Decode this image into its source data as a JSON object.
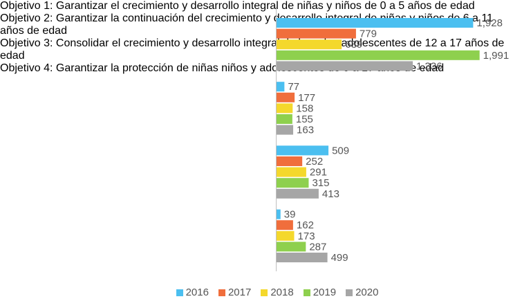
{
  "chart_data": {
    "type": "barh",
    "categories": [
      "Objetivo 1: Garantizar el crecimiento y desarrollo integral de niñas y niños de 0 a 5 años de edad",
      "Objetivo 2: Garantizar la continuación del crecimiento y desarrollo integral de niñas y niños de 6 a 11 años de edad",
      "Objetivo 3: Consolidar el crecimiento y desarrollo integral de las y los adolescentes de 12 a 17 años de edad",
      "Objetivo 4: Garantizar la protección de niñas niños y adolescentes de 0 a 17 años de edad"
    ],
    "series": [
      {
        "name": "2016",
        "color": "#4bbff0",
        "values": [
          1928,
          77,
          509,
          39
        ],
        "value_labels": [
          "1,928",
          "77",
          "509",
          "39"
        ]
      },
      {
        "name": "2017",
        "color": "#f06e3c",
        "values": [
          779,
          177,
          252,
          162
        ],
        "value_labels": [
          "779",
          "177",
          "252",
          "162"
        ]
      },
      {
        "name": "2018",
        "color": "#f4d82c",
        "values": [
          639,
          158,
          291,
          173
        ],
        "value_labels": [
          "639",
          "158",
          "291",
          "173"
        ]
      },
      {
        "name": "2019",
        "color": "#8ed04e",
        "values": [
          1991,
          155,
          315,
          287
        ],
        "value_labels": [
          "1,991",
          "155",
          "315",
          "287"
        ]
      },
      {
        "name": "2020",
        "color": "#a6a6a6",
        "values": [
          1336,
          163,
          413,
          499
        ],
        "value_labels": [
          "1,336",
          "163",
          "413",
          "499"
        ]
      }
    ],
    "xlim": [
      0,
      2000
    ],
    "legend": "bottom"
  }
}
